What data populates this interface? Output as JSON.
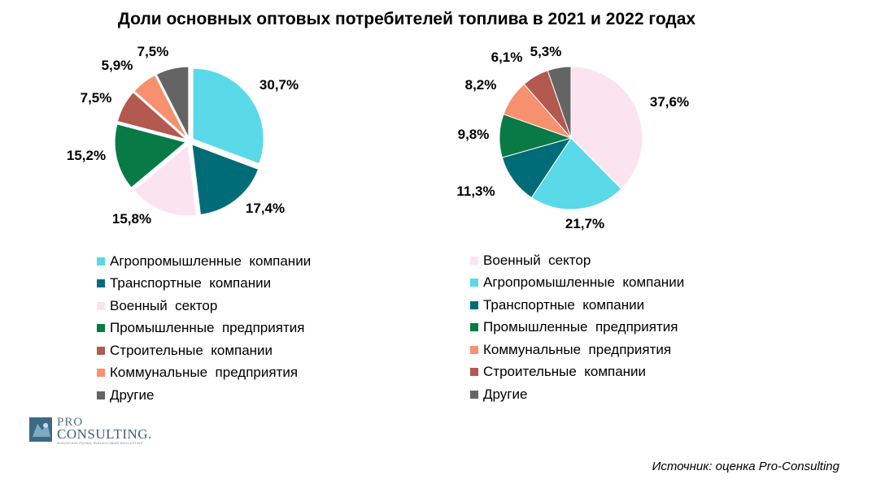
{
  "title": "Доли основных оптовых потребителей топлива в 2021 и 2022 годах",
  "source": "Источник: оценка Pro-Consulting",
  "logo": {
    "line1": "PRO",
    "line2": "CONSULTING.",
    "tagline": "АНАЛИТИКА РЫНКА. ФИНАНСОВЫЙ КОНСАЛТИНГ"
  },
  "chart_data": [
    {
      "type": "pie",
      "year": "2021",
      "slices": [
        {
          "label": "Агропромышленные  компании",
          "value": 30.7,
          "text": "30,7%",
          "color": "#5ad9e8"
        },
        {
          "label": "Транспортные  компании",
          "value": 17.4,
          "text": "17,4%",
          "color": "#006c78"
        },
        {
          "label": "Военный  сектор",
          "value": 15.8,
          "text": "15,8%",
          "color": "#fbe4f0"
        },
        {
          "label": "Промышленные  предприятия",
          "value": 15.2,
          "text": "15,2%",
          "color": "#077a45"
        },
        {
          "label": "Строительные  компании",
          "value": 7.5,
          "text": "7,5%",
          "color": "#b35950"
        },
        {
          "label": "Коммунальные  предприятия",
          "value": 5.9,
          "text": "5,9%",
          "color": "#f6906f"
        },
        {
          "label": "Другие",
          "value": 7.5,
          "text": "7,5%",
          "color": "#646464"
        }
      ]
    },
    {
      "type": "pie",
      "year": "2022",
      "slices": [
        {
          "label": "Военный  сектор",
          "value": 37.6,
          "text": "37,6%",
          "color": "#fbe4f0"
        },
        {
          "label": "Агропромышленные  компании",
          "value": 21.7,
          "text": "21,7%",
          "color": "#5ad9e8"
        },
        {
          "label": "Транспортные  компании",
          "value": 11.3,
          "text": "11,3%",
          "color": "#006c78"
        },
        {
          "label": "Промышленные  предприятия",
          "value": 9.8,
          "text": "9,8%",
          "color": "#077a45"
        },
        {
          "label": "Коммунальные  предприятия",
          "value": 8.2,
          "text": "8,2%",
          "color": "#f6906f"
        },
        {
          "label": "Строительные  компании",
          "value": 6.1,
          "text": "6,1%",
          "color": "#b35950"
        },
        {
          "label": "Другие",
          "value": 5.3,
          "text": "5,3%",
          "color": "#646464"
        }
      ]
    }
  ]
}
